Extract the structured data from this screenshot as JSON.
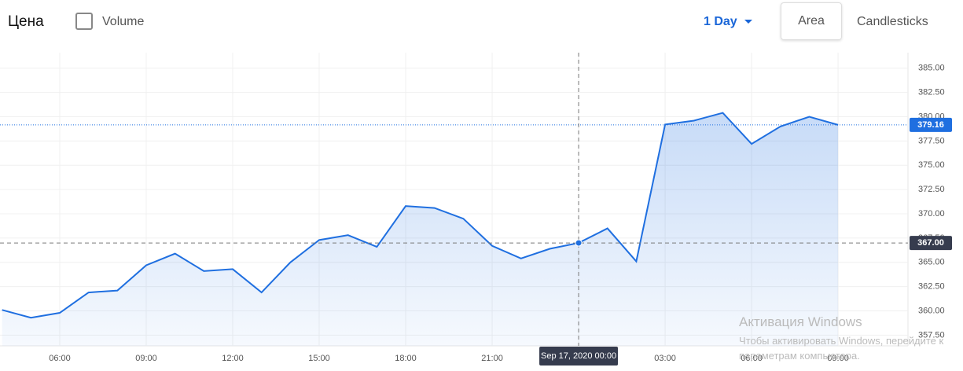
{
  "toolbar": {
    "title": "Цена",
    "volume": "Volume",
    "period": "1 Day",
    "area": "Area",
    "candlesticks": "Candlesticks"
  },
  "chart_data": {
    "type": "area",
    "categories": [
      null,
      null,
      "06:00",
      null,
      null,
      "09:00",
      null,
      null,
      "12:00",
      null,
      null,
      "15:00",
      null,
      null,
      "18:00",
      null,
      null,
      "21:00",
      null,
      null,
      "Sep 17, 2020 00:00",
      null,
      null,
      "03:00",
      null,
      null,
      "06:00",
      null,
      null,
      "09:00"
    ],
    "series": [
      {
        "name": "Цена",
        "color": "#1f6fe0",
        "values": [
          360.1,
          359.3,
          359.8,
          361.9,
          362.1,
          364.7,
          365.9,
          364.1,
          364.3,
          361.9,
          365.0,
          367.3,
          367.8,
          366.6,
          370.8,
          370.6,
          369.5,
          366.7,
          365.4,
          366.4,
          367.0,
          368.5,
          365.1,
          379.2,
          379.6,
          380.4,
          377.2,
          379.0,
          380.0,
          379.16
        ]
      }
    ],
    "ylim": [
      356.4,
      386.6
    ],
    "yticks": [
      {
        "value": 357.5,
        "label": "357.50"
      },
      {
        "value": 360,
        "label": "360.00"
      },
      {
        "value": 362.5,
        "label": "362.50"
      },
      {
        "value": 365,
        "label": "365.00"
      },
      {
        "value": 367.5,
        "label": "367.50"
      },
      {
        "value": 370,
        "label": "370.00"
      },
      {
        "value": 372.5,
        "label": "372.50"
      },
      {
        "value": 375,
        "label": "375.00"
      },
      {
        "value": 377.5,
        "label": "377.50"
      },
      {
        "value": 380,
        "label": "380.00"
      },
      {
        "value": 382.5,
        "label": "382.50"
      },
      {
        "value": 385,
        "label": "385.00"
      }
    ],
    "grid": true,
    "last_price": 379.16,
    "crosshair": {
      "value": 367,
      "label": "367.00"
    }
  },
  "watermark": {
    "title": "Активация Windows",
    "text": "Чтобы активировать Windows, перейдите к параметрам компьютера."
  }
}
